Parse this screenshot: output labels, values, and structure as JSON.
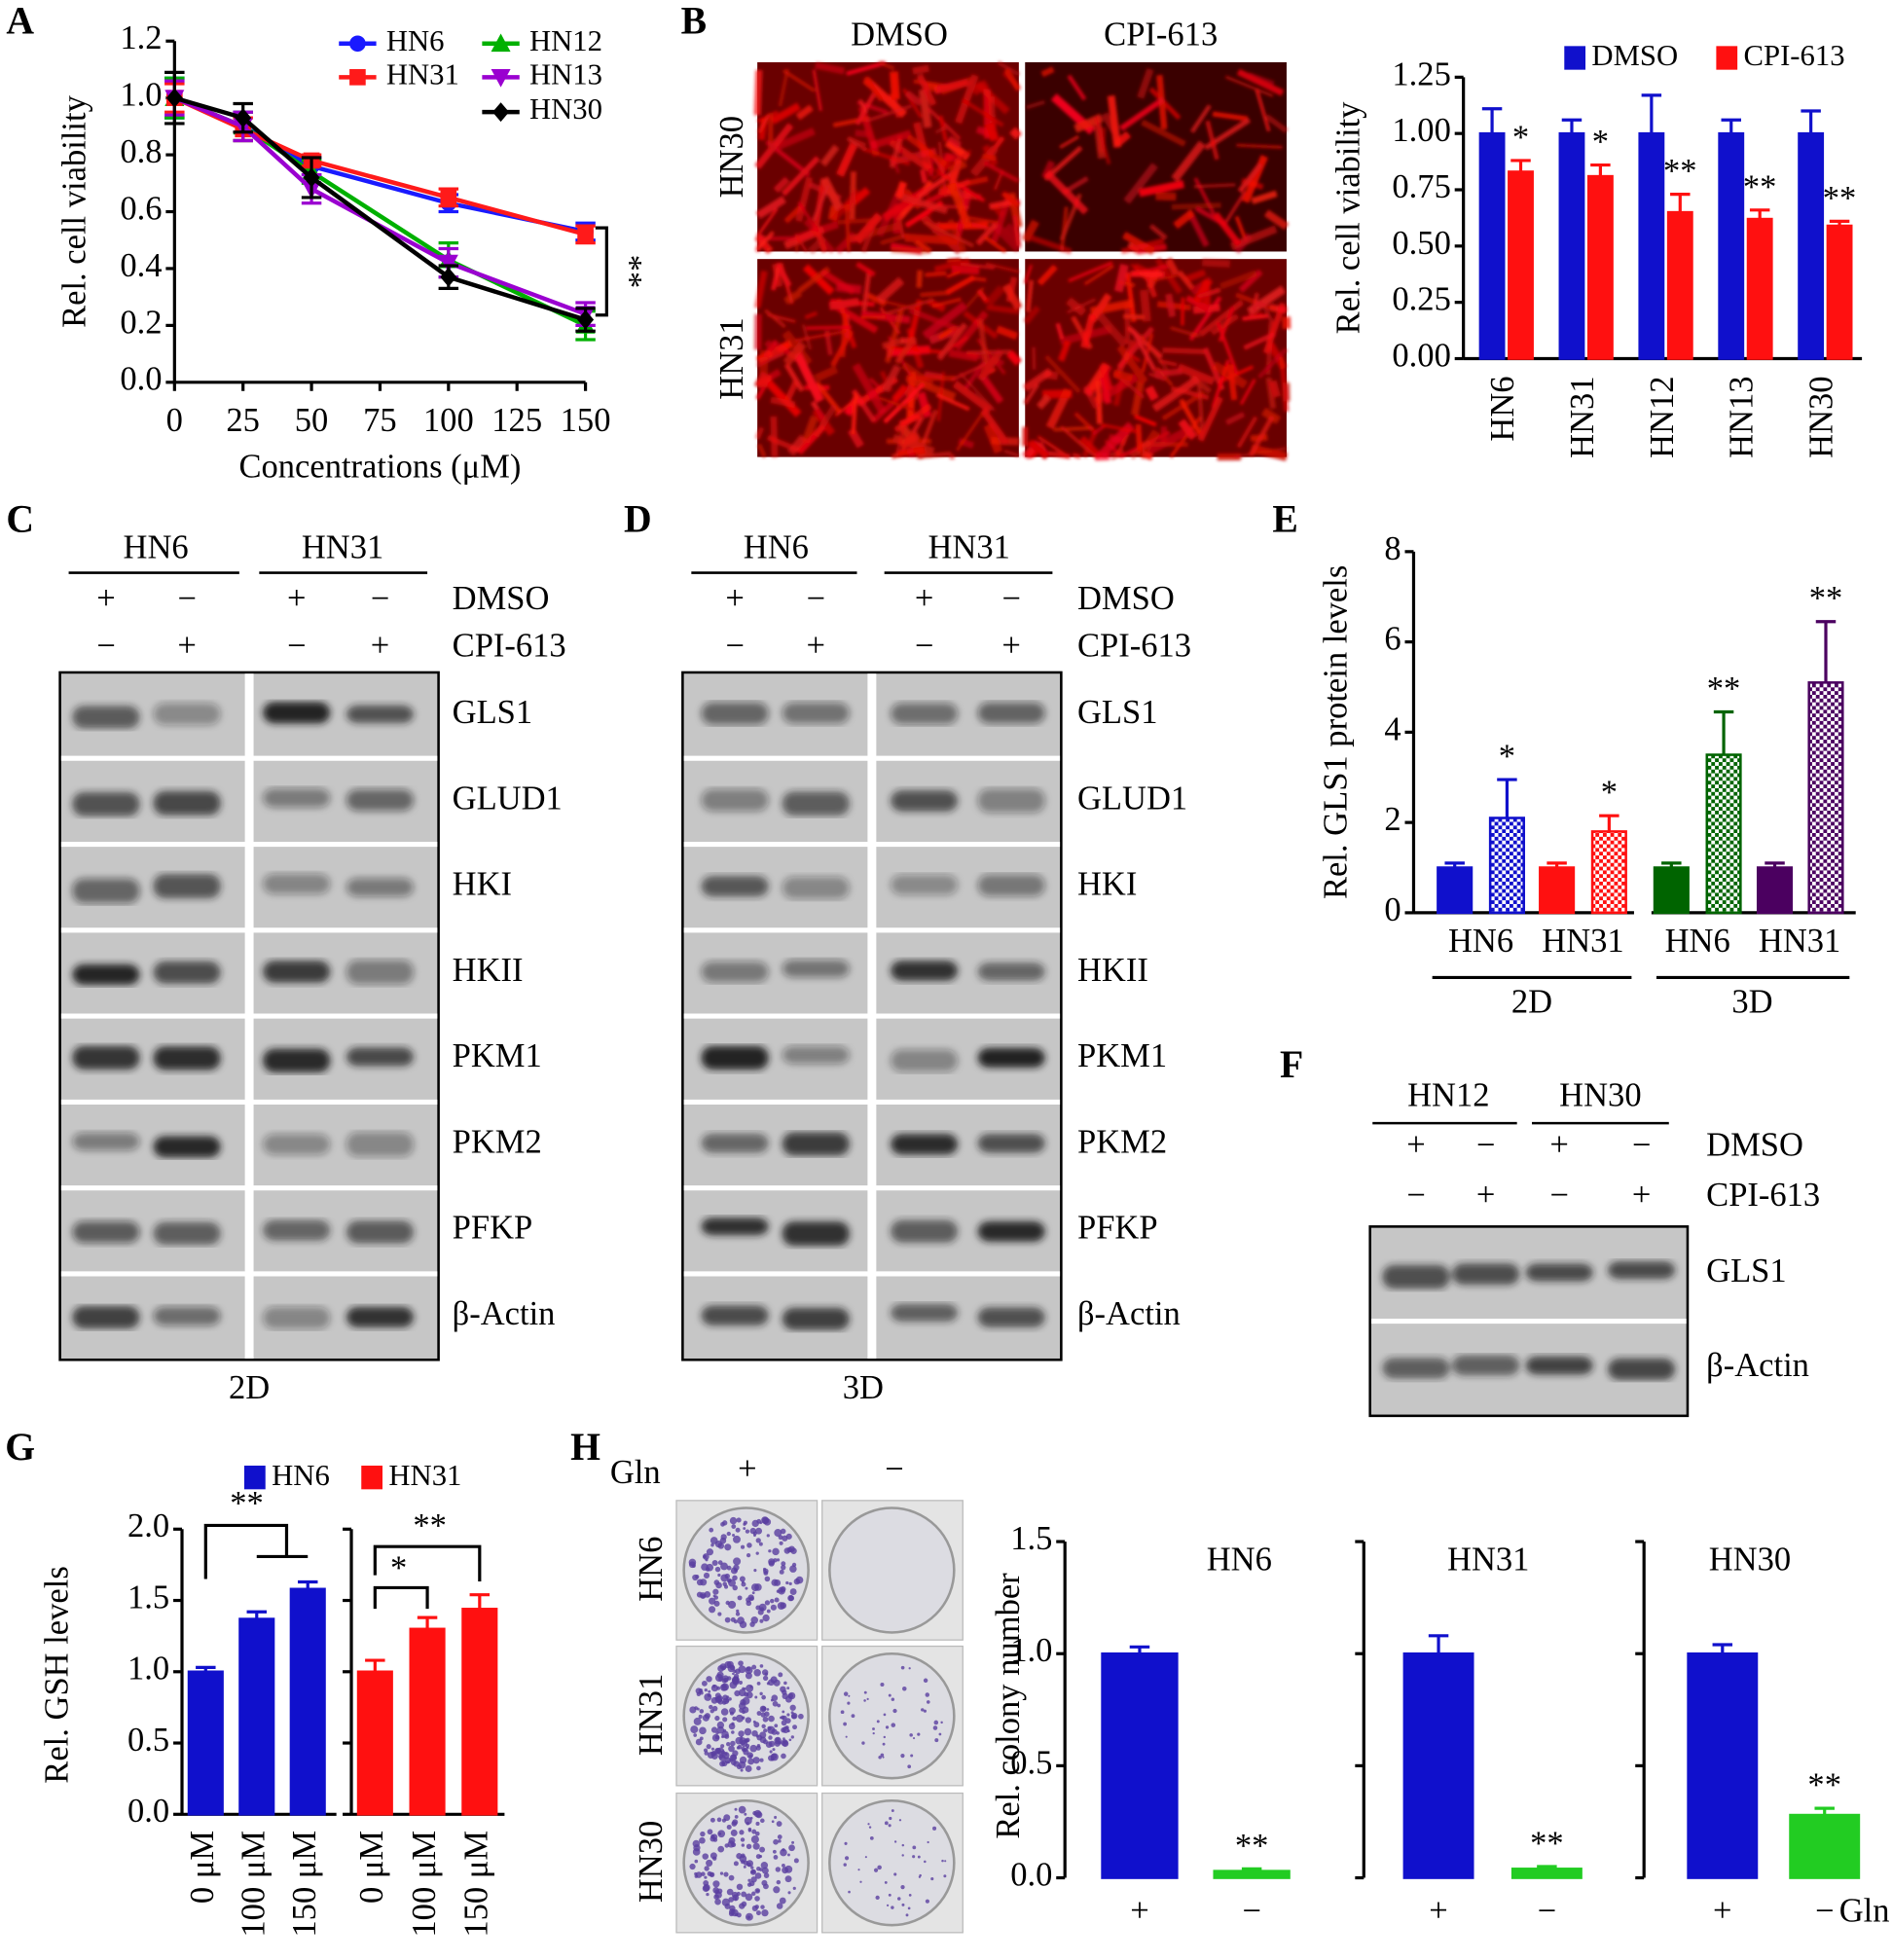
{
  "panel_labels": [
    "A",
    "B",
    "C",
    "D",
    "E",
    "F",
    "G",
    "H"
  ],
  "chart_data": [
    {
      "type": "line",
      "xlabel": "Concentrations (μM)",
      "ylabel": "Rel. cell viability",
      "x": [
        0,
        25,
        50,
        100,
        150
      ],
      "xlim": [
        0,
        150
      ],
      "xticks": [
        0,
        25,
        50,
        75,
        100,
        125,
        150
      ],
      "ylim": [
        0,
        1.2
      ],
      "yticks": [
        {
          "value": 0,
          "label": "0.0"
        },
        0.2,
        0.4,
        0.6,
        0.8,
        {
          "value": 1,
          "label": "1.0"
        },
        1.2
      ],
      "series": [
        {
          "name": "HN6",
          "color": "#1a1aff",
          "marker": "circle",
          "values": [
            1,
            0.9,
            0.76,
            0.63,
            0.53
          ],
          "errors": [
            0.07,
            0.05,
            0.03,
            0.03,
            0.03
          ]
        },
        {
          "name": "HN12",
          "color": "#00b000",
          "marker": "triangle-up",
          "values": [
            1,
            0.9,
            0.74,
            0.43,
            0.2
          ],
          "errors": [
            0.07,
            0.05,
            0.04,
            0.06,
            0.05
          ]
        },
        {
          "name": "HN31",
          "color": "#ff1a1a",
          "marker": "square",
          "values": [
            1,
            0.89,
            0.78,
            0.65,
            0.52
          ],
          "errors": [
            0.05,
            0.04,
            0.02,
            0.03,
            0.03
          ]
        },
        {
          "name": "HN13",
          "color": "#9a00d0",
          "marker": "triangle-down",
          "values": [
            1,
            0.9,
            0.68,
            0.42,
            0.24
          ],
          "errors": [
            0.06,
            0.05,
            0.05,
            0.05,
            0.04
          ]
        },
        {
          "name": "HN30",
          "color": "#000000",
          "marker": "diamond",
          "values": [
            1,
            0.93,
            0.72,
            0.37,
            0.22
          ],
          "errors": [
            0.09,
            0.05,
            0.07,
            0.04,
            0.04
          ]
        }
      ],
      "annotations": [
        "**"
      ]
    },
    {
      "type": "bar",
      "ylabel": "Rel. cell viability",
      "categories": [
        "HN6",
        "HN31",
        "HN12",
        "HN13",
        "HN30"
      ],
      "ylim": [
        0,
        1.25
      ],
      "yticks": [
        {
          "value": 0,
          "label": "0.00"
        },
        0.25,
        {
          "value": 0.5,
          "label": "0.50"
        },
        0.75,
        {
          "value": 1,
          "label": "1.00"
        },
        1.25
      ],
      "series": [
        {
          "name": "DMSO",
          "color": "#1010cc",
          "values": [
            1,
            1,
            1,
            1,
            1
          ],
          "errors": [
            0.11,
            0.06,
            0.17,
            0.06,
            0.1
          ]
        },
        {
          "name": "CPI-613",
          "color": "#ff1010",
          "values": [
            0.83,
            0.81,
            0.65,
            0.62,
            0.59
          ],
          "errors": [
            0.05,
            0.05,
            0.08,
            0.04,
            0.02
          ],
          "annotations": [
            "*",
            "*",
            "**",
            "**",
            "**"
          ]
        }
      ]
    },
    {
      "type": "bar",
      "ylabel": "Rel. GLS1 protein levels",
      "categories": [
        "HN6",
        "HN31",
        "HN6",
        "HN31"
      ],
      "groups": [
        "2D",
        "3D"
      ],
      "ylim": [
        0,
        8
      ],
      "yticks": [
        0,
        2,
        4,
        6,
        8
      ],
      "series": [
        {
          "colors": [
            "#1010cc",
            "#ff1010",
            "#006400",
            "#4b0060"
          ],
          "values": [
            1,
            1,
            1,
            1
          ],
          "errors": [
            0.1,
            0.1,
            0.1,
            0.1
          ]
        },
        {
          "colors": [
            "#1010cc",
            "#ff1010",
            "#006400",
            "#4b0060"
          ],
          "pattern": "checker",
          "values": [
            2.1,
            1.8,
            3.5,
            5.1
          ],
          "errors": [
            0.85,
            0.35,
            0.95,
            1.35
          ],
          "annotations": [
            "*",
            "*",
            "**",
            "**"
          ]
        }
      ]
    },
    {
      "type": "bar",
      "ylabel": "Rel. GSH levels",
      "categories": [
        "0 μM",
        "100 μM",
        "150 μM",
        "0 μM",
        "100 μM",
        "150 μM"
      ],
      "ylim": [
        0,
        2
      ],
      "yticks": [
        {
          "value": 0,
          "label": "0.0"
        },
        0.5,
        {
          "value": 1,
          "label": "1.0"
        },
        1.5,
        {
          "value": 2,
          "label": "2.0"
        }
      ],
      "series": [
        {
          "name": "HN6",
          "color": "#1010cc",
          "values": [
            1,
            1.37,
            1.58,
            null,
            null,
            null
          ],
          "errors": [
            0.03,
            0.05,
            0.05,
            null,
            null,
            null
          ]
        },
        {
          "name": "HN31",
          "color": "#ff1010",
          "values": [
            null,
            null,
            null,
            1,
            1.3,
            1.44
          ],
          "errors": [
            null,
            null,
            null,
            0.08,
            0.08,
            0.1
          ]
        }
      ],
      "annotations": [
        "**",
        "*",
        "**"
      ]
    },
    {
      "type": "bar",
      "title": "HN6",
      "ylabel": "Rel. colony number",
      "categories": [
        "+",
        "−"
      ],
      "ylim": [
        0,
        1.5
      ],
      "yticks": [
        {
          "value": 0,
          "label": "0.0"
        },
        0.5,
        {
          "value": 1,
          "label": "1.0"
        },
        1.5
      ],
      "series": [
        {
          "colors": [
            "#1010cc",
            "#22cc22"
          ],
          "values": [
            1,
            0.03
          ],
          "errors": [
            0.03,
            0.01
          ],
          "annotations": [
            null,
            "**"
          ]
        }
      ]
    },
    {
      "type": "bar",
      "title": "HN31",
      "categories": [
        "+",
        "−"
      ],
      "ylim": [
        0,
        1.5
      ],
      "yticks": [
        0,
        0.5,
        1,
        1.5
      ],
      "tick_labels": false,
      "series": [
        {
          "colors": [
            "#1010cc",
            "#22cc22"
          ],
          "values": [
            1,
            0.04
          ],
          "errors": [
            0.08,
            0.01
          ],
          "annotations": [
            null,
            "**"
          ]
        }
      ]
    },
    {
      "type": "bar",
      "title": "HN30",
      "xlabel": "Gln",
      "categories": [
        "+",
        "−"
      ],
      "ylim": [
        0,
        1.5
      ],
      "yticks": [
        0,
        0.5,
        1,
        1.5
      ],
      "tick_labels": false,
      "series": [
        {
          "colors": [
            "#1010cc",
            "#22cc22"
          ],
          "values": [
            1,
            0.28
          ],
          "errors": [
            0.04,
            0.03
          ],
          "annotations": [
            null,
            "**"
          ]
        }
      ]
    }
  ],
  "photos_b": {
    "columns": [
      "DMSO",
      "CPI-613"
    ],
    "rows": [
      "HN30",
      "HN31"
    ]
  },
  "photos_h": {
    "factor": "Gln",
    "columns": [
      "+",
      "−"
    ],
    "rows": [
      "HN6",
      "HN31",
      "HN30"
    ]
  },
  "blots": [
    {
      "groups": [
        "HN6",
        "HN31"
      ],
      "treatments": [
        "DMSO",
        "CPI-613"
      ],
      "signs": [
        [
          "+",
          "−",
          "+",
          "−"
        ],
        [
          "−",
          "+",
          "−",
          "+"
        ]
      ],
      "proteins": [
        "GLS1",
        "GLUD1",
        "HKI",
        "HKII",
        "PKM1",
        "PKM2",
        "PFKP",
        "β-Actin"
      ],
      "footer": "2D"
    },
    {
      "groups": [
        "HN6",
        "HN31"
      ],
      "treatments": [
        "DMSO",
        "CPI-613"
      ],
      "signs": [
        [
          "+",
          "−",
          "+",
          "−"
        ],
        [
          "−",
          "+",
          "−",
          "+"
        ]
      ],
      "proteins": [
        "GLS1",
        "GLUD1",
        "HKI",
        "HKII",
        "PKM1",
        "PKM2",
        "PFKP",
        "β-Actin"
      ],
      "footer": "3D"
    },
    {
      "groups": [
        "HN12",
        "HN30"
      ],
      "treatments": [
        "DMSO",
        "CPI-613"
      ],
      "signs": [
        [
          "+",
          "−",
          "+",
          "−"
        ],
        [
          "−",
          "+",
          "−",
          "+"
        ]
      ],
      "proteins": [
        "GLS1",
        "β-Actin"
      ]
    }
  ]
}
